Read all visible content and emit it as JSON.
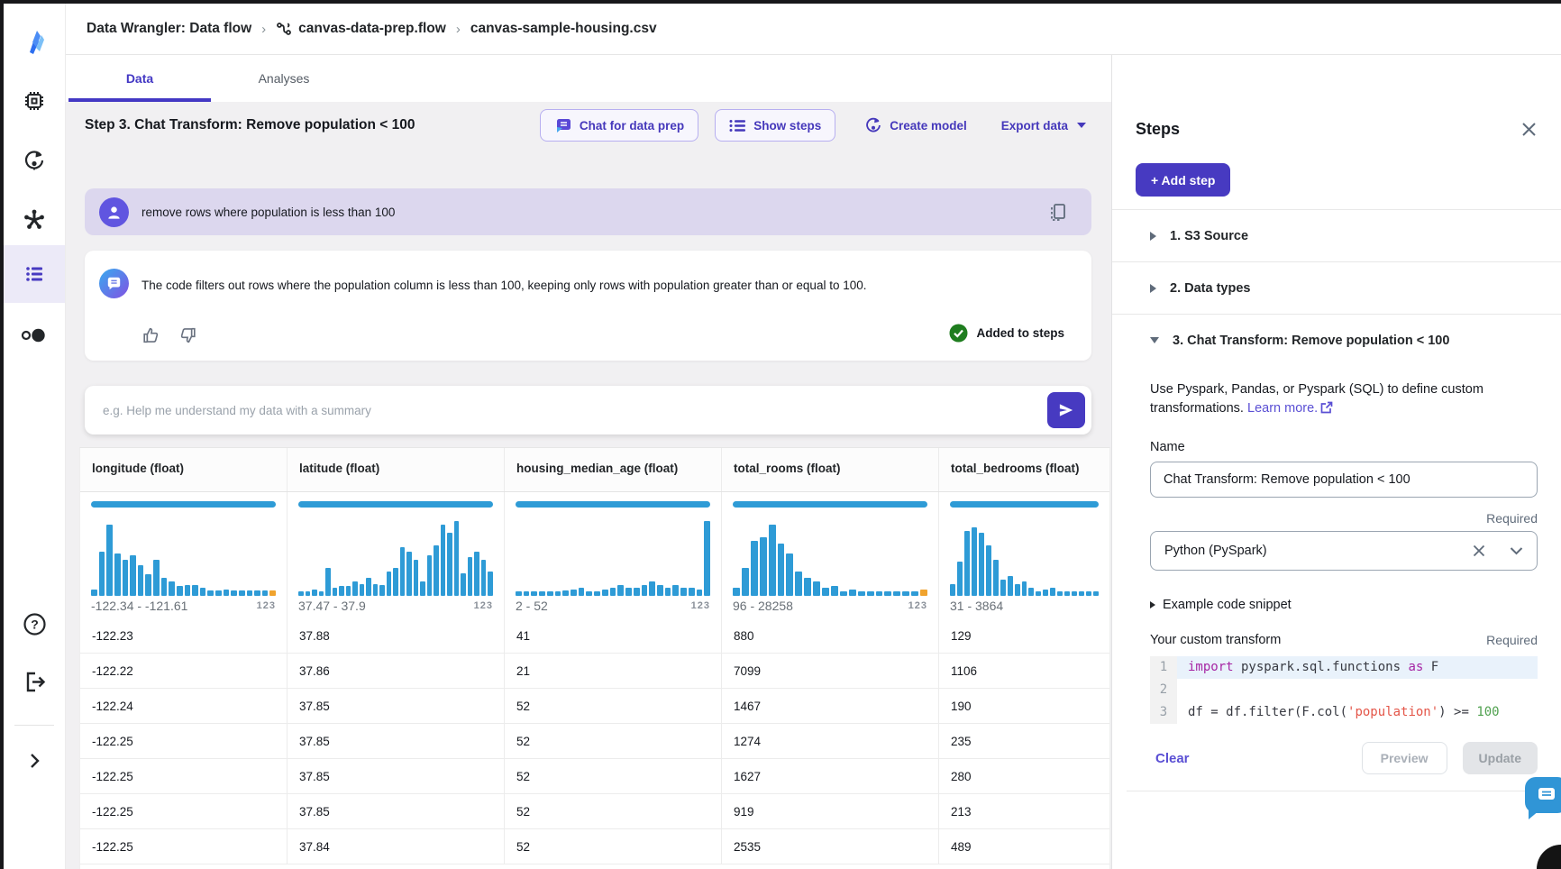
{
  "colors": {
    "accent": "#473ac1",
    "tab_active": "#4338c4",
    "histogram_blue": "#2e9bd6",
    "histogram_orange": "#f0a32e",
    "success_green": "#1f7d1f",
    "user_bubble": "#dcd7ee",
    "fab_blue": "#3095d6"
  },
  "breadcrumb": {
    "root": "Data Wrangler: Data flow",
    "separator": "›",
    "flow": "canvas-data-prep.flow",
    "file": "canvas-sample-housing.csv"
  },
  "tabs": [
    {
      "label": "Data"
    },
    {
      "label": "Analyses"
    }
  ],
  "toolbar": {
    "step_title": "Step 3. Chat Transform: Remove population < 100",
    "chat_button": "Chat for data prep",
    "show_steps_button": "Show steps",
    "create_model_button": "Create model",
    "export_button": "Export data"
  },
  "chat": {
    "user_message": "remove rows where population is less than 100",
    "assistant_message": "The code filters out rows where the population column is less than 100, keeping only rows with population greater than or equal to 100.",
    "status": "Added to steps",
    "input_placeholder": "e.g. Help me understand my data with a summary"
  },
  "table": {
    "columns": [
      {
        "label": "longitude (float)",
        "range": "-122.34 - -121.61",
        "type_icon": "123",
        "highlight_last": true,
        "histogram": [
          8,
          55,
          88,
          52,
          45,
          50,
          38,
          27,
          45,
          22,
          18,
          12,
          13,
          13,
          10,
          7,
          7,
          8,
          7,
          7,
          7,
          7,
          7,
          7
        ]
      },
      {
        "label": "latitude (float)",
        "range": "37.47 - 37.9",
        "type_icon": "123",
        "highlight_last": false,
        "histogram": [
          6,
          6,
          8,
          6,
          35,
          10,
          12,
          12,
          18,
          15,
          22,
          15,
          13,
          30,
          35,
          60,
          55,
          45,
          18,
          50,
          62,
          88,
          78,
          92,
          28,
          48,
          55,
          45,
          30
        ]
      },
      {
        "label": "housing_median_age (float)",
        "range": "2 - 52",
        "type_icon": "123",
        "highlight_last": false,
        "histogram": [
          6,
          6,
          6,
          6,
          6,
          6,
          7,
          8,
          10,
          6,
          6,
          8,
          10,
          13,
          10,
          10,
          13,
          18,
          13,
          10,
          13,
          10,
          10,
          8,
          92
        ]
      },
      {
        "label": "total_rooms (float)",
        "range": "96 - 28258",
        "type_icon": "123",
        "highlight_last": true,
        "histogram": [
          10,
          35,
          68,
          72,
          88,
          65,
          52,
          30,
          22,
          18,
          10,
          12,
          6,
          8,
          6,
          6,
          6,
          6,
          6,
          6,
          6,
          8
        ]
      },
      {
        "label": "total_bedrooms (float)",
        "range": "31 - 3864",
        "type_icon": "",
        "highlight_last": false,
        "histogram": [
          15,
          42,
          80,
          85,
          78,
          62,
          45,
          20,
          25,
          15,
          18,
          10,
          6,
          8,
          10,
          6,
          6,
          6,
          6,
          6,
          6
        ]
      }
    ],
    "rows": [
      [
        "-122.23",
        "37.88",
        "41",
        "880",
        "129"
      ],
      [
        "-122.22",
        "37.86",
        "21",
        "7099",
        "1106"
      ],
      [
        "-122.24",
        "37.85",
        "52",
        "1467",
        "190"
      ],
      [
        "-122.25",
        "37.85",
        "52",
        "1274",
        "235"
      ],
      [
        "-122.25",
        "37.85",
        "52",
        "1627",
        "280"
      ],
      [
        "-122.25",
        "37.85",
        "52",
        "919",
        "213"
      ],
      [
        "-122.25",
        "37.84",
        "52",
        "2535",
        "489"
      ]
    ]
  },
  "steps_panel": {
    "title": "Steps",
    "add_step_button": "+ Add step",
    "steps": [
      {
        "label": "1. S3 Source",
        "expanded": false
      },
      {
        "label": "2. Data types",
        "expanded": false
      },
      {
        "label": "3. Chat Transform: Remove population < 100",
        "expanded": true
      }
    ],
    "description": "Use Pyspark, Pandas, or Pyspark (SQL) to define custom transformations.",
    "learn_more": "Learn more.",
    "name_label": "Name",
    "name_value": "Chat Transform: Remove population < 100",
    "required_label": "Required",
    "language_value": "Python (PySpark)",
    "example_toggle": "Example code snippet",
    "custom_transform_label": "Your custom transform",
    "code": {
      "lines": [
        {
          "no": "1",
          "highlight": true,
          "tokens": [
            [
              "kw",
              "import"
            ],
            [
              "pl",
              " pyspark.sql.functions "
            ],
            [
              "kw",
              "as"
            ],
            [
              "pl",
              " F"
            ]
          ]
        },
        {
          "no": "2",
          "highlight": false,
          "tokens": []
        },
        {
          "no": "3",
          "highlight": false,
          "tokens": [
            [
              "pl",
              "df = df.filter(F.col("
            ],
            [
              "str",
              "'population'"
            ],
            [
              "pl",
              ") >= "
            ],
            [
              "num",
              "100"
            ]
          ]
        }
      ]
    },
    "clear_button": "Clear",
    "preview_button": "Preview",
    "update_button": "Update"
  }
}
